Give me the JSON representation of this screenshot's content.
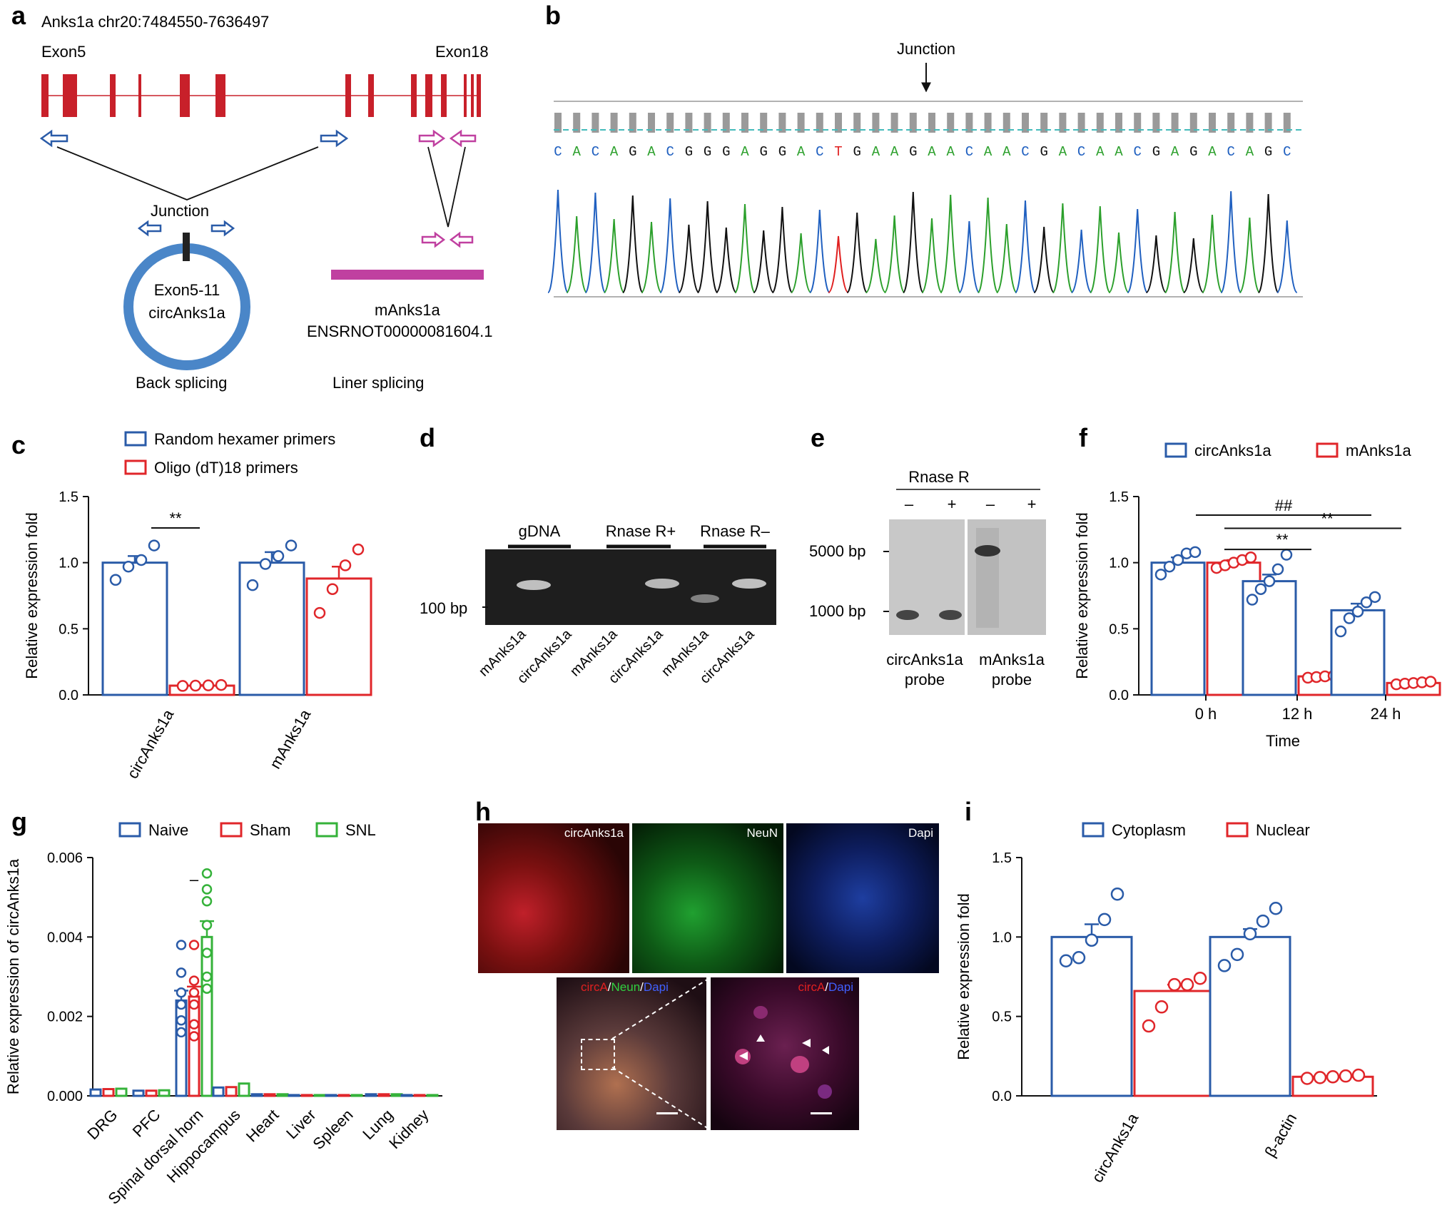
{
  "panels": {
    "a": {
      "label": "a",
      "gene_locus": "Anks1a chr20:7484550-7636497",
      "exon_start": "Exon5",
      "exon_end": "Exon18",
      "junction": "Junction",
      "circ_line1": "Exon5-11",
      "circ_line2": "circAnks1a",
      "linear_name": "mAnks1a",
      "linear_id": "ENSRNOT00000081604.1",
      "back_splicing": "Back splicing",
      "liner_splicing": "Liner splicing"
    },
    "b": {
      "label": "b",
      "junction": "Junction",
      "sequence": "CACAGACGGGAGGACTGAAGAACAACGACAACGAGACAGC",
      "base_colors": {
        "A": "#2ca02c",
        "C": "#2060c0",
        "G": "#111111",
        "T": "#e02020"
      }
    },
    "c": {
      "label": "c"
    },
    "d": {
      "label": "d",
      "group_labels": [
        "gDNA",
        "Rnase R+",
        "Rnase R–"
      ],
      "marker": "100 bp",
      "lane_labels": [
        "mAnks1a",
        "circAnks1a",
        "mAnks1a",
        "circAnks1a",
        "mAnks1a",
        "circAnks1a"
      ]
    },
    "e": {
      "label": "e",
      "header": "Rnase R",
      "signs": [
        "–",
        "+",
        "–",
        "+"
      ],
      "marker_high": "5000 bp",
      "marker_low": "1000 bp",
      "probe1_l1": "circAnks1a",
      "probe1_l2": "probe",
      "probe2_l1": "mAnks1a",
      "probe2_l2": "probe"
    },
    "f": {
      "label": "f"
    },
    "g": {
      "label": "g"
    },
    "h": {
      "label": "h",
      "tile_labels": [
        "circAnks1a",
        "NeuN",
        "Dapi"
      ],
      "merge_circ": "circA",
      "merge_neun": "Neun",
      "merge_dapi": "Dapi",
      "zoom_circ": "circA",
      "zoom_dapi": "Dapi",
      "slash": "/"
    },
    "i": {
      "label": "i"
    }
  },
  "colors": {
    "blue": "#2a5ba8",
    "red": "#e0262a",
    "green": "#35b23a",
    "exon": "#c8202a",
    "pink": "#c040a0"
  },
  "chart_data": [
    {
      "id": "c",
      "type": "bar",
      "ylabel": "Relative expression fold",
      "ylim": [
        0,
        1.5
      ],
      "yticks": [
        "0.0",
        "0.5",
        "1.0",
        "1.5"
      ],
      "categories": [
        "circAnks1a",
        "mAnks1a"
      ],
      "series": [
        {
          "name": "Random hexamer primers",
          "values": [
            1.0,
            1.0
          ],
          "errors": [
            0.05,
            0.08
          ],
          "points": [
            [
              0.87,
              0.97,
              1.02,
              1.13
            ],
            [
              0.83,
              0.99,
              1.05,
              1.13
            ]
          ]
        },
        {
          "name": "Oligo (dT)18 primers",
          "values": [
            0.07,
            0.88
          ],
          "errors": [
            0.005,
            0.09
          ],
          "points": [
            [
              0.068,
              0.07,
              0.072,
              0.075
            ],
            [
              0.62,
              0.8,
              0.98,
              1.1
            ]
          ]
        }
      ],
      "annotations": [
        {
          "text": "**"
        }
      ]
    },
    {
      "id": "f",
      "type": "bar",
      "xlabel": "Time",
      "ylabel": "Relative expression fold",
      "ylim": [
        0,
        1.5
      ],
      "yticks": [
        "0.0",
        "0.5",
        "1.0",
        "1.5"
      ],
      "categories": [
        "0 h",
        "12 h",
        "24 h"
      ],
      "series": [
        {
          "name": "circAnks1a",
          "values": [
            1.0,
            0.86,
            0.64
          ],
          "errors": [
            0.04,
            0.05,
            0.05
          ],
          "points": [
            [
              0.91,
              0.97,
              1.02,
              1.07,
              1.08
            ],
            [
              0.72,
              0.8,
              0.86,
              0.95,
              1.06
            ],
            [
              0.48,
              0.58,
              0.63,
              0.7,
              0.74
            ]
          ]
        },
        {
          "name": "mAnks1a",
          "values": [
            1.0,
            0.14,
            0.09
          ],
          "errors": [
            0.02,
            0.008,
            0.006
          ],
          "points": [
            [
              0.96,
              0.98,
              1.0,
              1.02,
              1.04
            ],
            [
              0.13,
              0.135,
              0.14,
              0.145,
              0.15
            ],
            [
              0.08,
              0.085,
              0.09,
              0.095,
              0.1
            ]
          ]
        }
      ],
      "annotations": [
        {
          "text": "##"
        },
        {
          "text": "**"
        },
        {
          "text": "**"
        }
      ]
    },
    {
      "id": "g",
      "type": "bar",
      "ylabel": "Relative expression of circAnks1a",
      "ylim": [
        0,
        0.006
      ],
      "yticks": [
        "0.000",
        "0.002",
        "0.004",
        "0.006"
      ],
      "categories": [
        "DRG",
        "PFC",
        "Spinal dorsal horn",
        "Hippocampus",
        "Heart",
        "Liver",
        "Spleen",
        "Lung",
        "Kidney"
      ],
      "series": [
        {
          "name": "Naive",
          "values": [
            0.00016,
            0.00013,
            0.0024,
            0.00021,
            4e-05,
            2e-05,
            2e-05,
            4e-05,
            2e-05
          ]
        },
        {
          "name": "Sham",
          "values": [
            0.00017,
            0.00013,
            0.0025,
            0.00022,
            4e-05,
            2e-05,
            2e-05,
            4e-05,
            2e-05
          ]
        },
        {
          "name": "SNL",
          "values": [
            0.00018,
            0.00014,
            0.004,
            0.00031,
            4e-05,
            2e-05,
            2e-05,
            4e-05,
            2e-05
          ]
        }
      ],
      "spinal_points": [
        [
          0.0016,
          0.0019,
          0.0023,
          0.0026,
          0.0031,
          0.0038
        ],
        [
          0.0015,
          0.0018,
          0.0023,
          0.0026,
          0.0029,
          0.0038
        ],
        [
          0.0027,
          0.003,
          0.0036,
          0.0043,
          0.0049,
          0.0052,
          0.0056
        ]
      ],
      "spinal_errors": [
        0.00025,
        0.00025,
        0.0004
      ],
      "annotations": [
        {
          "text": "–"
        }
      ]
    },
    {
      "id": "i",
      "type": "bar",
      "ylabel": "Relative expression fold",
      "ylim": [
        0,
        1.5
      ],
      "yticks": [
        "0.0",
        "0.5",
        "1.0",
        "1.5"
      ],
      "categories": [
        "circAnks1a",
        "β-actin"
      ],
      "series": [
        {
          "name": "Cytoplasm",
          "values": [
            1.0,
            1.0
          ],
          "errors": [
            0.08,
            0.05
          ],
          "points": [
            [
              0.85,
              0.87,
              0.98,
              1.11,
              1.27
            ],
            [
              0.82,
              0.89,
              1.02,
              1.1,
              1.18
            ]
          ]
        },
        {
          "name": "Nuclear",
          "values": [
            0.66,
            0.12
          ],
          "errors": [
            0.04,
            0.004
          ],
          "points": [
            [
              0.44,
              0.56,
              0.7,
              0.7,
              0.74
            ],
            [
              0.11,
              0.115,
              0.12,
              0.125,
              0.13
            ]
          ]
        }
      ]
    }
  ]
}
